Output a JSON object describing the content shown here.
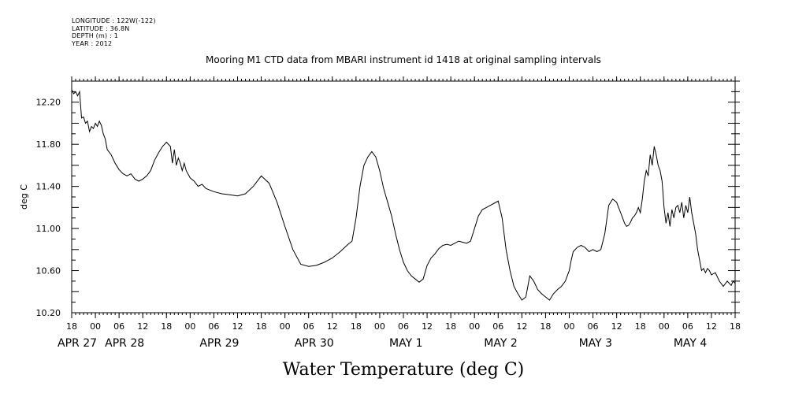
{
  "meta": {
    "longitude": "LONGITUDE : 122W(-122)",
    "latitude": "LATITUDE : 36.8N",
    "depth": "DEPTH (m) : 1",
    "year": "YEAR : 2012"
  },
  "chart_data": {
    "type": "line",
    "title": "Mooring M1 CTD data from MBARI instrument id 1418 at original sampling intervals",
    "xlabel": "Water Temperature (deg C)",
    "ylabel": "deg C",
    "ylim": [
      10.2,
      12.4
    ],
    "xlim": [
      -6,
      162
    ],
    "x_unit": "hours since APR 27 00:00",
    "y_ticks": [
      "10.20",
      "10.60",
      "11.00",
      "11.40",
      "11.80",
      "12.20"
    ],
    "hour_ticks": [
      {
        "h": -6,
        "label": "18"
      },
      {
        "h": 0,
        "label": "00"
      },
      {
        "h": 6,
        "label": "06"
      },
      {
        "h": 12,
        "label": "12"
      },
      {
        "h": 18,
        "label": "18"
      },
      {
        "h": 24,
        "label": "00"
      },
      {
        "h": 30,
        "label": "06"
      },
      {
        "h": 36,
        "label": "12"
      },
      {
        "h": 42,
        "label": "18"
      },
      {
        "h": 48,
        "label": "00"
      },
      {
        "h": 54,
        "label": "06"
      },
      {
        "h": 60,
        "label": "12"
      },
      {
        "h": 66,
        "label": "18"
      },
      {
        "h": 72,
        "label": "00"
      },
      {
        "h": 78,
        "label": "06"
      },
      {
        "h": 84,
        "label": "12"
      },
      {
        "h": 90,
        "label": "18"
      },
      {
        "h": 96,
        "label": "00"
      },
      {
        "h": 102,
        "label": "06"
      },
      {
        "h": 108,
        "label": "12"
      },
      {
        "h": 114,
        "label": "18"
      },
      {
        "h": 120,
        "label": "00"
      },
      {
        "h": 126,
        "label": "06"
      },
      {
        "h": 132,
        "label": "12"
      },
      {
        "h": 138,
        "label": "18"
      },
      {
        "h": 144,
        "label": "00"
      },
      {
        "h": 150,
        "label": "06"
      },
      {
        "h": 156,
        "label": "12"
      },
      {
        "h": 162,
        "label": "18"
      }
    ],
    "day_labels": [
      {
        "h": -6,
        "label": "APR 27"
      },
      {
        "h": 6,
        "label": "APR 28"
      },
      {
        "h": 30,
        "label": "APR 29"
      },
      {
        "h": 54,
        "label": "APR 30"
      },
      {
        "h": 78,
        "label": "MAY  1"
      },
      {
        "h": 102,
        "label": "MAY  2"
      },
      {
        "h": 126,
        "label": "MAY  3"
      },
      {
        "h": 150,
        "label": "MAY  4"
      }
    ],
    "series": [
      {
        "x": [
          -6,
          -5.5,
          -5,
          -4.5,
          -4,
          -3.5,
          -3,
          -2.5,
          -2,
          -1.5,
          -1,
          -0.5,
          0,
          0.5,
          1,
          1.5,
          2,
          2.5,
          3,
          4,
          5,
          6,
          7,
          8,
          9,
          10,
          11,
          12,
          13,
          14,
          15,
          16,
          17,
          18,
          19,
          19.5,
          20,
          20.5,
          21,
          21.5,
          22,
          22.5,
          23,
          24,
          25,
          26,
          27,
          28,
          30,
          32,
          34,
          36,
          38,
          40,
          42,
          44,
          46,
          48,
          50,
          52,
          54,
          56,
          58,
          60,
          62,
          64,
          65,
          66,
          67,
          68,
          69,
          70,
          71,
          72,
          73,
          74,
          75,
          76,
          77,
          78,
          79,
          80,
          81,
          82,
          83,
          84,
          85,
          86,
          87,
          88,
          89,
          90,
          91,
          92,
          93,
          94,
          95,
          96,
          97,
          98,
          99,
          100,
          101,
          102,
          103,
          104,
          105,
          106,
          107,
          108,
          109,
          110,
          111,
          112,
          113,
          114,
          115,
          116,
          117,
          118,
          119,
          119.5,
          120,
          120.5,
          121,
          122,
          123,
          124,
          125,
          126,
          127,
          128,
          129,
          130,
          131,
          132,
          132.5,
          133,
          133.5,
          134,
          134.5,
          135,
          135.5,
          136,
          136.5,
          137,
          137.5,
          138,
          138.5,
          139,
          139.5,
          140,
          140.5,
          141,
          141.5,
          142,
          142.5,
          143,
          143.5,
          144,
          144.5,
          145,
          145.5,
          146,
          146.5,
          147,
          147.5,
          148,
          148.5,
          149,
          149.5,
          150,
          150.5,
          151,
          151.5,
          152,
          152.5,
          153,
          153.5,
          154,
          154.5,
          155,
          155.5,
          156,
          157,
          158,
          159,
          160,
          160.5,
          161,
          161.5,
          162
        ],
        "y": [
          12.32,
          12.28,
          12.3,
          12.26,
          12.3,
          12.05,
          12.06,
          12.0,
          12.02,
          11.92,
          11.97,
          11.95,
          12.0,
          11.97,
          12.02,
          11.98,
          11.9,
          11.85,
          11.75,
          11.7,
          11.62,
          11.56,
          11.52,
          11.5,
          11.52,
          11.47,
          11.45,
          11.47,
          11.5,
          11.55,
          11.65,
          11.72,
          11.78,
          11.82,
          11.78,
          11.62,
          11.75,
          11.6,
          11.67,
          11.62,
          11.55,
          11.62,
          11.55,
          11.48,
          11.45,
          11.4,
          11.42,
          11.38,
          11.35,
          11.33,
          11.32,
          11.31,
          11.33,
          11.4,
          11.5,
          11.43,
          11.25,
          11.02,
          10.8,
          10.66,
          10.64,
          10.65,
          10.68,
          10.72,
          10.78,
          10.85,
          10.88,
          11.1,
          11.4,
          11.6,
          11.68,
          11.73,
          11.68,
          11.55,
          11.38,
          11.25,
          11.12,
          10.95,
          10.8,
          10.68,
          10.6,
          10.55,
          10.52,
          10.49,
          10.52,
          10.65,
          10.72,
          10.76,
          10.81,
          10.84,
          10.85,
          10.84,
          10.86,
          10.88,
          10.87,
          10.86,
          10.88,
          11.0,
          11.12,
          11.18,
          11.2,
          11.22,
          11.24,
          11.26,
          11.1,
          10.8,
          10.6,
          10.45,
          10.38,
          10.32,
          10.35,
          10.55,
          10.5,
          10.42,
          10.38,
          10.35,
          10.32,
          10.38,
          10.42,
          10.45,
          10.5,
          10.55,
          10.6,
          10.7,
          10.78,
          10.82,
          10.84,
          10.82,
          10.78,
          10.8,
          10.78,
          10.8,
          10.95,
          11.22,
          11.28,
          11.25,
          11.2,
          11.15,
          11.1,
          11.05,
          11.02,
          11.03,
          11.06,
          11.1,
          11.12,
          11.15,
          11.2,
          11.15,
          11.28,
          11.45,
          11.55,
          11.5,
          11.7,
          11.6,
          11.78,
          11.7,
          11.6,
          11.55,
          11.45,
          11.2,
          11.05,
          11.15,
          11.02,
          11.18,
          11.1,
          11.2,
          11.22,
          11.15,
          11.25,
          11.1,
          11.22,
          11.15,
          11.3,
          11.15,
          11.05,
          10.95,
          10.8,
          10.7,
          10.6,
          10.62,
          10.58,
          10.62,
          10.6,
          10.56,
          10.58,
          10.5,
          10.45,
          10.5,
          10.48,
          10.46,
          10.5,
          10.48
        ]
      }
    ]
  }
}
